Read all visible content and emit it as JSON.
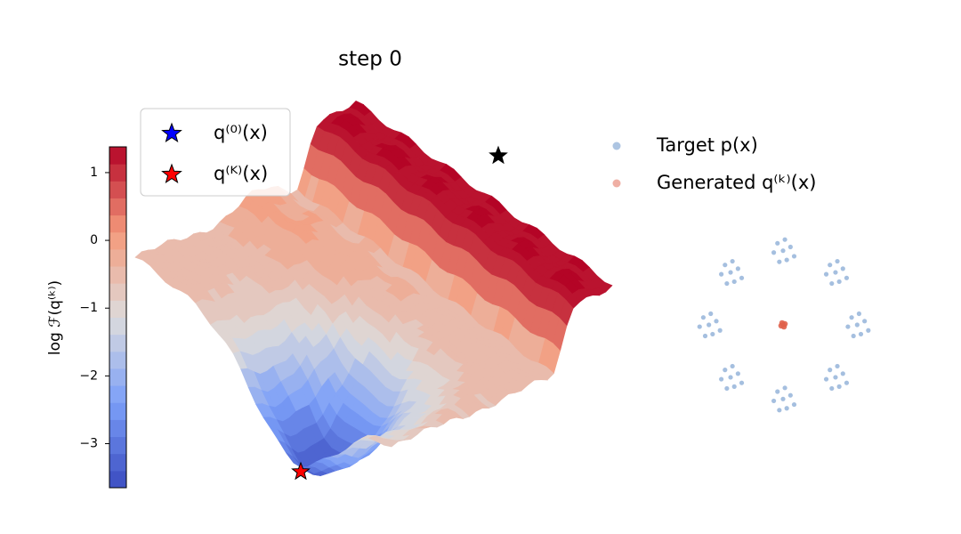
{
  "chart_data": [
    {
      "type": "surface",
      "title": "step 0",
      "colorbar": {
        "label": "log ℱ(q⁽ᵏ⁾)",
        "clim": [
          -3.65,
          1.38
        ],
        "ticks": [
          {
            "value": -3,
            "label": "−3"
          },
          {
            "value": -2,
            "label": "−2"
          },
          {
            "value": -1,
            "label": "−1"
          },
          0,
          1
        ]
      },
      "markers": [
        {
          "name": "q⁽⁰⁾(x)",
          "color": "#0000ff",
          "value": 1.25
        },
        {
          "name": "q⁽ᴷ⁾(x)",
          "color": "#ff0000",
          "value": -3.4
        }
      ]
    },
    {
      "type": "scatter",
      "xlim": [
        -6,
        6
      ],
      "ylim": [
        -6,
        6
      ],
      "series": [
        {
          "name": "Target p(x)",
          "color": "#5b8bc5",
          "x": [
            4,
            4.4,
            3.7,
            4.2,
            3.5,
            4.6,
            3.8,
            4.1,
            2.83,
            3.23,
            2.53,
            3.03,
            2.33,
            3.43,
            2.63,
            2.93,
            0,
            0.4,
            -0.3,
            0.2,
            -0.5,
            0.6,
            -0.2,
            0.1,
            -2.83,
            -2.43,
            -3.13,
            -2.63,
            -3.33,
            -2.23,
            -3.03,
            -2.73,
            -4,
            -3.6,
            -4.3,
            -3.8,
            -4.5,
            -3.4,
            -4.2,
            -3.9,
            -2.83,
            -2.43,
            -3.13,
            -2.63,
            -3.33,
            -2.23,
            -3.03,
            -2.73,
            0,
            0.4,
            -0.3,
            0.2,
            -0.5,
            0.6,
            -0.2,
            0.1,
            2.83,
            3.23,
            2.53,
            3.03,
            2.33,
            3.43,
            2.63,
            2.93
          ],
          "y": [
            0,
            0.2,
            0.4,
            -0.5,
            -0.1,
            -0.3,
            -0.6,
            0.6,
            2.83,
            3.03,
            3.23,
            2.33,
            2.73,
            2.53,
            2.23,
            3.43,
            4,
            4.2,
            4.4,
            3.5,
            3.9,
            3.7,
            3.4,
            4.6,
            2.83,
            3.03,
            3.23,
            2.33,
            2.73,
            2.53,
            2.23,
            3.43,
            0,
            0.2,
            0.4,
            -0.5,
            -0.1,
            -0.3,
            -0.6,
            0.6,
            -2.83,
            -2.63,
            -2.43,
            -3.33,
            -2.93,
            -3.13,
            -3.43,
            -2.23,
            -4,
            -3.8,
            -3.6,
            -4.5,
            -4.1,
            -4.3,
            -4.6,
            -3.4,
            -2.83,
            -2.63,
            -2.43,
            -3.33,
            -2.93,
            -3.13,
            -3.43,
            -2.23
          ]
        },
        {
          "name": "Generated q⁽ᵏ⁾(x)",
          "color": "#e0604a",
          "x": [
            0,
            0.1,
            -0.1,
            0.05,
            -0.05
          ],
          "y": [
            0,
            0.05,
            -0.05,
            -0.1,
            0.1
          ]
        }
      ]
    }
  ]
}
